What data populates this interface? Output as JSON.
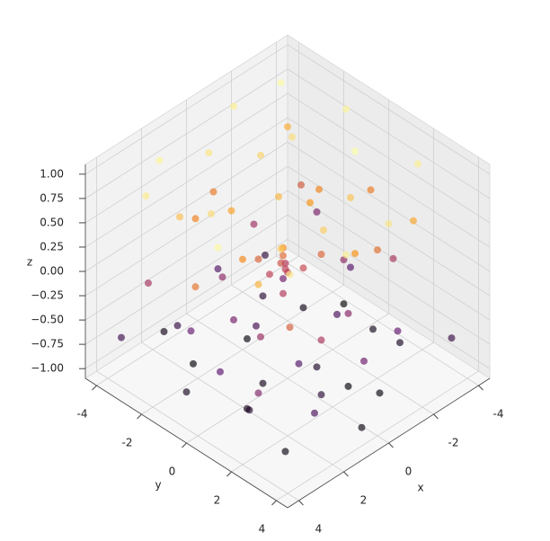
{
  "chart_data": {
    "type": "scatter3d",
    "cmap": "inferno",
    "xlabel": "x",
    "ylabel": "y",
    "zlabel": "z",
    "xlim": [
      -4.5,
      4.5
    ],
    "ylim": [
      -4.5,
      4.5
    ],
    "zlim": [
      -1.1,
      1.1
    ],
    "xticks": [
      -4,
      -2,
      0,
      2,
      4
    ],
    "yticks": [
      -4,
      -2,
      0,
      2,
      4
    ],
    "zticks": [
      {
        "value": -1,
        "label": "−1.00"
      },
      {
        "value": -0.75,
        "label": "−0.75"
      },
      {
        "value": -0.5,
        "label": "−0.50"
      },
      {
        "value": -0.25,
        "label": "−0.25"
      },
      {
        "value": 0,
        "label": "0.00"
      },
      {
        "value": 0.25,
        "label": "0.25"
      },
      {
        "value": 0.5,
        "label": "0.50"
      },
      {
        "value": 0.75,
        "label": "0.75"
      },
      {
        "value": 1,
        "label": "1.00"
      }
    ],
    "grid": true,
    "x": [
      -3.2,
      -1.5,
      0.5,
      2.1,
      3.5,
      -3.8,
      -2.4,
      -3.6,
      -1.0,
      1.2,
      3.0,
      3.9,
      2.4,
      -0.8,
      -2.0,
      0.3,
      1.8,
      -1.6,
      -0.2,
      2.8,
      -3.0,
      3.2,
      -2.6,
      1.0,
      -1.2,
      0.8,
      -0.5,
      2.0,
      -2.2,
      1.5,
      -3.5,
      0.0,
      3.6,
      -1.8,
      0.4,
      -0.6,
      0.9,
      2.5,
      -2.8,
      0.2,
      -0.3,
      0.5,
      -0.1,
      0.1,
      -0.4,
      0.6,
      1.3,
      -3.2,
      3.0,
      -1.5,
      2.2,
      -2.5,
      0.7,
      -0.9,
      3.8,
      -3.9,
      1.6,
      -1.0,
      0.0,
      2.7,
      -2.0,
      3.3,
      -3.3,
      1.1,
      -0.5,
      2.3,
      -1.7,
      0.4,
      3.7,
      -3.7,
      1.9,
      -2.6,
      0.9,
      -1.3,
      2.9,
      -0.2,
      3.5,
      -3.0,
      1.4,
      -2.2,
      0.6,
      3.1,
      -1.1,
      2.0,
      -3.5,
      0.0,
      1.7,
      -0.7,
      2.6,
      -2.9
    ],
    "y": [
      -3.5,
      -3.9,
      -3.0,
      -3.6,
      -2.8,
      -1.2,
      0.6,
      2.2,
      3.5,
      3.8,
      3.1,
      0.8,
      -1.0,
      -2.0,
      -1.8,
      1.9,
      1.5,
      1.2,
      -0.6,
      -2.0,
      -3.0,
      1.9,
      3.0,
      -1.5,
      -0.2,
      0.6,
      2.5,
      0.0,
      -0.8,
      -2.6,
      0.2,
      -3.3,
      -0.5,
      2.2,
      0.2,
      0.9,
      -0.4,
      2.6,
      -2.2,
      -0.1,
      0.4,
      -0.3,
      -0.2,
      0.1,
      -0.5,
      0.4,
      2.8,
      1.5,
      -3.2,
      -3.0,
      1.0,
      0.0,
      -2.2,
      1.8,
      2.5,
      -2.6,
      -0.8,
      -1.2,
      3.4,
      -1.6,
      2.9,
      0.3,
      -0.5,
      1.6,
      -3.6,
      3.5,
      0.5,
      -1.0,
      -3.7,
      3.6,
      -3.0,
      -3.6,
      2.4,
      -2.4,
      1.2,
      1.1,
      -1.0,
      2.0,
      0.3,
      -1.5,
      3.9,
      3.0,
      3.0,
      -2.2,
      -1.0,
      -1.8,
      -3.8,
      2.0,
      0.8,
      0.9
    ],
    "z": [
      0.95,
      0.9,
      0.85,
      0.92,
      0.88,
      0.93,
      0.97,
      0.9,
      0.86,
      0.91,
      0.87,
      0.94,
      0.8,
      0.78,
      0.82,
      0.75,
      0.72,
      0.7,
      0.65,
      0.68,
      0.6,
      0.62,
      0.58,
      0.55,
      0.5,
      0.45,
      0.48,
      0.42,
      0.4,
      0.38,
      0.35,
      0.33,
      0.3,
      0.28,
      0.25,
      0.22,
      0.2,
      0.18,
      0.15,
      0.1,
      0.05,
      0.0,
      -0.02,
      0.02,
      -0.05,
      -0.08,
      -0.1,
      -0.12,
      -0.15,
      -0.18,
      -0.2,
      -0.25,
      -0.28,
      -0.3,
      -0.32,
      -0.35,
      -0.38,
      -0.4,
      -0.42,
      -0.45,
      -0.48,
      -0.5,
      -0.52,
      -0.55,
      -0.58,
      -0.6,
      -0.62,
      -0.65,
      -0.68,
      -0.7,
      -0.72,
      -0.75,
      -0.78,
      -0.8,
      -0.82,
      -0.85,
      -0.87,
      -0.88,
      -0.9,
      -0.92,
      -0.94,
      -0.95,
      -0.97,
      -0.98,
      -1.0,
      -0.96,
      -0.93,
      -0.99,
      -0.91,
      -0.89
    ]
  }
}
